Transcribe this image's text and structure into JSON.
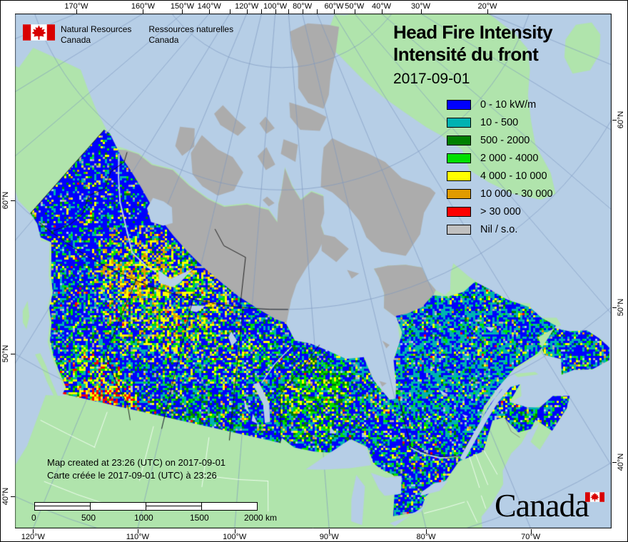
{
  "logo": {
    "flag_icon": "canada-flag",
    "en_line1": "Natural Resources",
    "en_line2": "Canada",
    "fr_line1": "Ressources naturelles",
    "fr_line2": "Canada"
  },
  "title": {
    "line1": "Head Fire Intensity",
    "line2": "Intensité du front",
    "date": "2017-09-01"
  },
  "legend": {
    "items": [
      {
        "label": "0 - 10 kW/m",
        "color": "#0000fe"
      },
      {
        "label": "10 - 500",
        "color": "#00b2b2"
      },
      {
        "label": "500 - 2000",
        "color": "#008000"
      },
      {
        "label": "2 000 - 4000",
        "color": "#00e000"
      },
      {
        "label": "4 000 - 10 000",
        "color": "#ffff00"
      },
      {
        "label": "10 000 - 30 000",
        "color": "#e09b00"
      },
      {
        "label": "> 30 000",
        "color": "#fe0000"
      },
      {
        "label": "Nil / s.o.",
        "color": "#c0c0c0"
      }
    ]
  },
  "credits": {
    "line1": "Map created at 23:26 (UTC) on 2017-09-01",
    "line2": "Carte créée le 2017-09-01 (UTC) à 23:26"
  },
  "scalebar": {
    "labels": [
      "0",
      "500",
      "1000",
      "1500"
    ],
    "end_label": "2000 km"
  },
  "axes": {
    "top": [
      {
        "value": -170,
        "label": "170°W"
      },
      {
        "value": -160,
        "label": "160°W"
      },
      {
        "value": -150,
        "label": "150°W"
      },
      {
        "value": -140,
        "label": "140°W"
      },
      {
        "value": -120,
        "label": "120°W"
      },
      {
        "value": -100,
        "label": "100°W"
      },
      {
        "value": -80,
        "label": "80°W"
      },
      {
        "value": -60,
        "label": "60°W"
      },
      {
        "value": -50,
        "label": "50°W"
      },
      {
        "value": -40,
        "label": "40°W"
      },
      {
        "value": -30,
        "label": "30°W"
      },
      {
        "value": -20,
        "label": "20°W"
      }
    ],
    "top_minor": [
      -130,
      -110,
      -90,
      -70
    ],
    "bottom": [
      {
        "value": -120,
        "label": "120°W"
      },
      {
        "value": -110,
        "label": "110°W"
      },
      {
        "value": -100,
        "label": "100°W"
      },
      {
        "value": -90,
        "label": "90°W"
      },
      {
        "value": -80,
        "label": "80°W"
      },
      {
        "value": -70,
        "label": "70°W"
      }
    ],
    "left": [
      {
        "value": 60,
        "label": "60°N"
      },
      {
        "value": 50,
        "label": "50°N"
      },
      {
        "value": 40,
        "label": "40°N"
      }
    ],
    "right": [
      {
        "value": 60,
        "label": "60°N"
      },
      {
        "value": 50,
        "label": "50°N"
      },
      {
        "value": 40,
        "label": "40°N"
      }
    ]
  },
  "wordmark": {
    "text": "Canada",
    "flag_icon": "canada-flag"
  },
  "map_colors": {
    "water": "#b6cee6",
    "land": "#b0e4ac",
    "nil_gray": "#acacac",
    "graticule": "#7d96be",
    "raster": {
      "blue": "#0000fe",
      "teal": "#00b2b2",
      "dark_green": "#008000",
      "green": "#00e000",
      "yellow": "#ffff00",
      "orange": "#e09b00",
      "red": "#fe0000",
      "gray": "#a8a8a8",
      "lake_blue": "#9fc4e8"
    }
  }
}
